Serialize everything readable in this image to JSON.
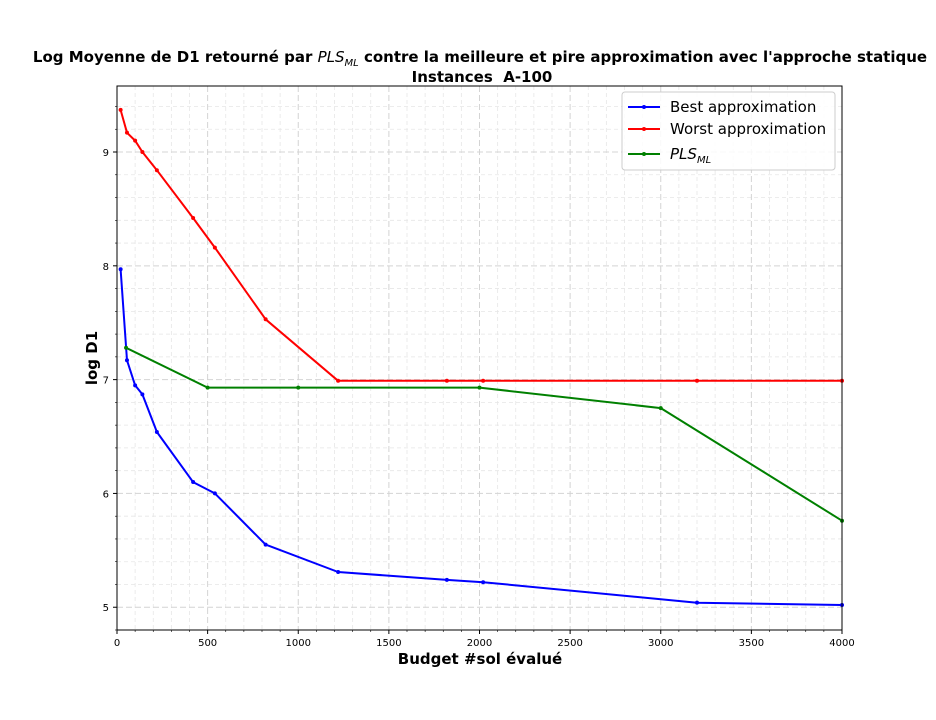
{
  "chart_data": {
    "type": "line",
    "title_line1_prefix": "Log Moyenne de D1 retourné par ",
    "title_line1_math_main": "PLS",
    "title_line1_math_sub": "ML",
    "title_line1_suffix": " contre la meilleure et pire approximation avec l'approche statique",
    "title_line2": "Instances  A-100",
    "xlabel": "Budget #sol évalué",
    "ylabel": "log D1",
    "xlim": [
      0,
      4000
    ],
    "ylim": [
      4.8,
      9.58
    ],
    "xticks": [
      0,
      500,
      1000,
      1500,
      2000,
      2500,
      3000,
      3500,
      4000
    ],
    "xtick_labels": [
      "0",
      "500",
      "1000",
      "1500",
      "2000",
      "2500",
      "3000",
      "3500",
      "4000"
    ],
    "yticks": [
      5,
      6,
      7,
      8,
      9
    ],
    "ytick_labels": [
      "5",
      "6",
      "7",
      "8",
      "9"
    ],
    "grid": true,
    "legend_position": "top-right",
    "series": [
      {
        "name": "Best approximation",
        "color": "#0000ff",
        "x": [
          20,
          55,
          100,
          140,
          220,
          420,
          540,
          820,
          1220,
          1820,
          2020,
          3200,
          4000
        ],
        "y": [
          7.97,
          7.17,
          6.95,
          6.87,
          6.54,
          6.1,
          6.0,
          5.55,
          5.31,
          5.24,
          5.22,
          5.04,
          5.02
        ]
      },
      {
        "name": "Worst approximation",
        "color": "#ff0000",
        "x": [
          20,
          55,
          100,
          140,
          220,
          420,
          540,
          820,
          1220,
          1820,
          2020,
          3200,
          4000
        ],
        "y": [
          9.37,
          9.17,
          9.1,
          9.0,
          8.84,
          8.42,
          8.16,
          7.53,
          6.99,
          6.99,
          6.99,
          6.99,
          6.99
        ]
      },
      {
        "name_main": "PLS",
        "name_sub": "ML",
        "color": "#008000",
        "x": [
          50,
          500,
          1000,
          2000,
          3000,
          4000
        ],
        "y": [
          7.28,
          6.93,
          6.93,
          6.93,
          6.75,
          5.76
        ]
      }
    ]
  }
}
